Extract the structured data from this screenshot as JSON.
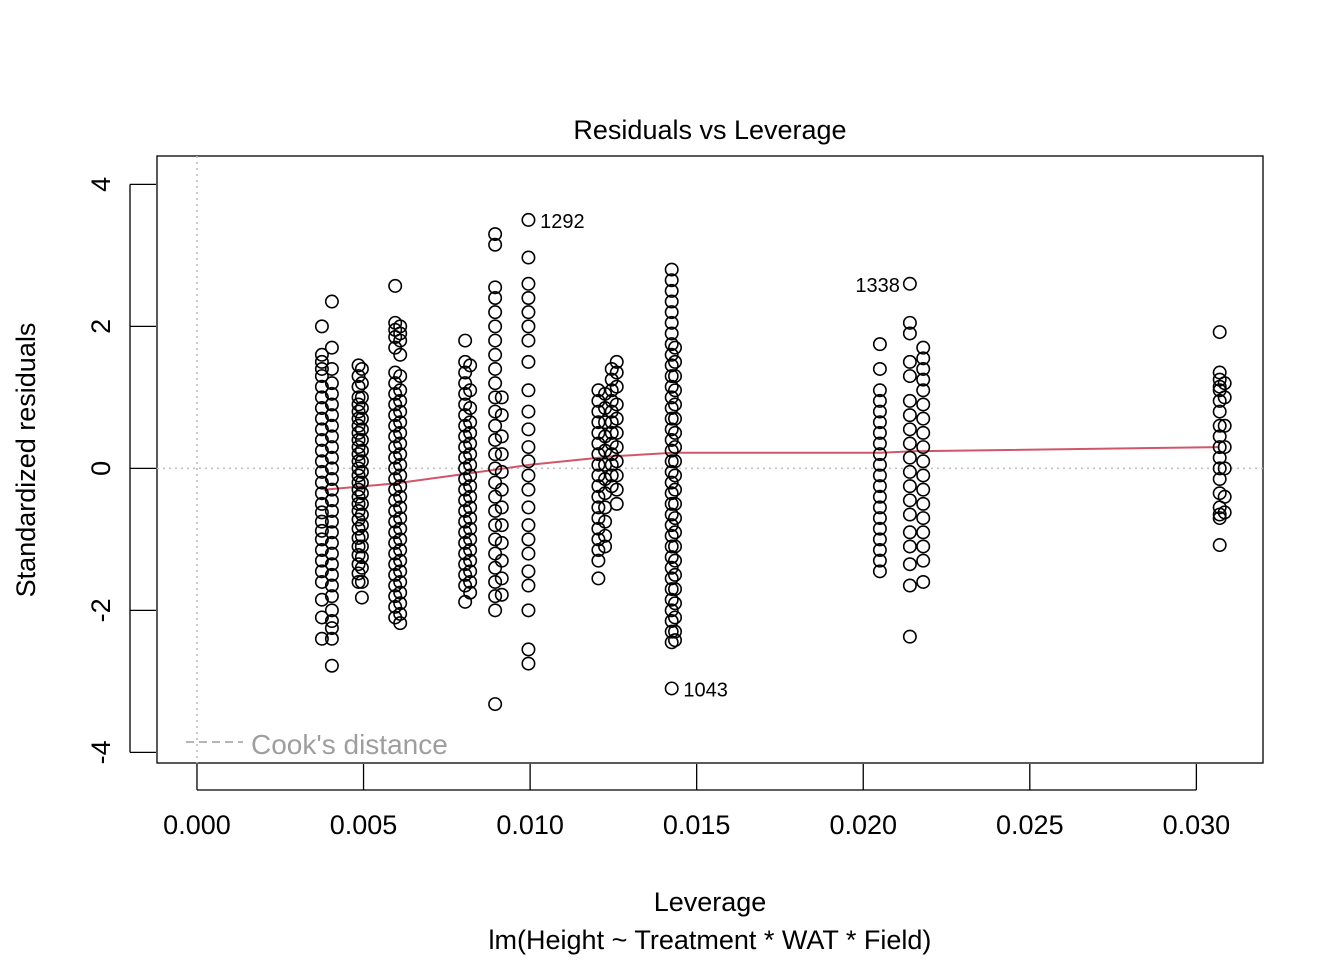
{
  "chart_data": {
    "type": "scatter",
    "title": "Residuals vs Leverage",
    "xlabel": "Leverage",
    "subtitle": "lm(Height ~ Treatment * WAT * Field)",
    "ylabel": "Standardized residuals",
    "xlim": [
      -0.0012,
      0.032
    ],
    "ylim": [
      -4.15,
      4.4
    ],
    "x_ticks": [
      0.0,
      0.005,
      0.01,
      0.015,
      0.02,
      0.025,
      0.03
    ],
    "x_tick_labels": [
      "0.000",
      "0.005",
      "0.010",
      "0.015",
      "0.020",
      "0.025",
      "0.030"
    ],
    "y_ticks": [
      -4,
      -2,
      0,
      2,
      4
    ],
    "y_tick_labels": [
      "-4",
      "-2",
      "0",
      "2",
      "4"
    ],
    "reference_lines": {
      "horizontal": 0,
      "vertical": 0,
      "style": "dotted",
      "color": "#bdbdbd"
    },
    "legend": {
      "position": "bottom-left",
      "label": "Cook's distance",
      "line_style": "dashed",
      "color": "#9e9e9e"
    },
    "smooth_line": {
      "color": "#d1566b",
      "x": [
        0.0038,
        0.006,
        0.008,
        0.01,
        0.0125,
        0.0143,
        0.0205,
        0.0215,
        0.0307
      ],
      "y": [
        -0.3,
        -0.21,
        -0.08,
        0.05,
        0.17,
        0.22,
        0.22,
        0.24,
        0.3
      ]
    },
    "point_color": "#000000",
    "labeled_points": [
      {
        "label": "1292",
        "x": 0.01,
        "y": 3.5,
        "side": "right"
      },
      {
        "label": "1338",
        "x": 0.0214,
        "y": 2.6,
        "side": "left"
      },
      {
        "label": "1043",
        "x": 0.0143,
        "y": -3.1,
        "side": "right"
      }
    ],
    "columns": [
      {
        "x": 0.00375,
        "y": [
          2.0,
          1.6,
          1.5,
          1.4,
          1.3,
          1.15,
          1.0,
          0.85,
          0.7,
          0.55,
          0.4,
          0.25,
          0.1,
          -0.05,
          -0.2,
          -0.35,
          -0.5,
          -0.62,
          -0.75,
          -0.88,
          -1.0,
          -1.15,
          -1.3,
          -1.45,
          -1.6,
          -1.85,
          -2.1,
          -2.4
        ]
      },
      {
        "x": 0.00405,
        "y": [
          2.35,
          1.7,
          1.4,
          1.2,
          1.05,
          0.9,
          0.75,
          0.6,
          0.45,
          0.3,
          0.15,
          0.0,
          -0.15,
          -0.3,
          -0.45,
          -0.6,
          -0.75,
          -0.9,
          -1.05,
          -1.2,
          -1.35,
          -1.5,
          -1.65,
          -1.8,
          -2.0,
          -2.15,
          -2.25,
          -2.4,
          -2.78
        ]
      },
      {
        "x": 0.00485,
        "y": [
          1.45,
          1.3,
          1.15,
          1.0,
          0.9,
          0.8,
          0.7,
          0.6,
          0.5,
          0.4,
          0.3,
          0.2,
          0.1,
          0.0,
          -0.1,
          -0.2,
          -0.3,
          -0.4,
          -0.5,
          -0.6,
          -0.72,
          -0.85,
          -0.98,
          -1.1,
          -1.22,
          -1.35,
          -1.48,
          -1.6
        ]
      },
      {
        "x": 0.00495,
        "y": [
          1.4,
          1.2,
          1.0,
          0.85,
          0.7,
          0.55,
          0.4,
          0.25,
          0.1,
          -0.05,
          -0.2,
          -0.35,
          -0.5,
          -0.65,
          -0.8,
          -0.95,
          -1.1,
          -1.25,
          -1.4,
          -1.6,
          -1.82
        ]
      },
      {
        "x": 0.00595,
        "y": [
          2.57,
          2.05,
          1.95,
          1.85,
          1.7,
          1.35,
          1.2,
          1.05,
          0.9,
          0.75,
          0.6,
          0.45,
          0.3,
          0.15,
          0.0,
          -0.15,
          -0.3,
          -0.45,
          -0.6,
          -0.75,
          -0.9,
          -1.05,
          -1.2,
          -1.35,
          -1.5,
          -1.65,
          -1.8,
          -1.95,
          -2.1
        ]
      },
      {
        "x": 0.0061,
        "y": [
          2.0,
          1.9,
          1.8,
          1.6,
          1.3,
          1.1,
          0.95,
          0.8,
          0.65,
          0.5,
          0.35,
          0.2,
          0.05,
          -0.1,
          -0.25,
          -0.4,
          -0.55,
          -0.7,
          -0.85,
          -1.0,
          -1.15,
          -1.3,
          -1.45,
          -1.6,
          -1.75,
          -1.9,
          -2.05,
          -2.18
        ]
      },
      {
        "x": 0.00805,
        "y": [
          1.8,
          1.5,
          1.35,
          1.2,
          1.05,
          0.9,
          0.75,
          0.6,
          0.45,
          0.3,
          0.15,
          0.0,
          -0.15,
          -0.3,
          -0.45,
          -0.6,
          -0.75,
          -0.9,
          -1.05,
          -1.2,
          -1.35,
          -1.5,
          -1.65,
          -1.88
        ]
      },
      {
        "x": 0.0082,
        "y": [
          1.45,
          1.1,
          0.85,
          0.65,
          0.5,
          0.35,
          0.2,
          0.05,
          -0.1,
          -0.25,
          -0.4,
          -0.55,
          -0.7,
          -0.85,
          -1.0,
          -1.15,
          -1.3,
          -1.45,
          -1.6,
          -1.75
        ]
      },
      {
        "x": 0.00895,
        "y": [
          3.3,
          3.15,
          2.55,
          2.4,
          2.2,
          2.0,
          1.8,
          1.6,
          1.4,
          1.2,
          1.0,
          0.8,
          0.6,
          0.4,
          0.2,
          0.0,
          -0.2,
          -0.4,
          -0.6,
          -0.8,
          -1.0,
          -1.2,
          -1.4,
          -1.6,
          -1.8,
          -2.0,
          -3.32
        ]
      },
      {
        "x": 0.00915,
        "y": [
          1.0,
          0.75,
          0.45,
          0.2,
          -0.05,
          -0.3,
          -0.55,
          -0.8,
          -1.05,
          -1.3,
          -1.55,
          -1.78
        ]
      },
      {
        "x": 0.00995,
        "y": [
          3.5,
          2.97,
          2.6,
          2.4,
          2.2,
          2.0,
          1.8,
          1.5,
          1.1,
          0.8,
          0.55,
          0.3,
          0.1,
          -0.1,
          -0.3,
          -0.55,
          -0.8,
          -1.0,
          -1.2,
          -1.45,
          -1.65,
          -2.0,
          -2.55,
          -2.75
        ]
      },
      {
        "x": 0.01205,
        "y": [
          1.1,
          0.95,
          0.8,
          0.65,
          0.5,
          0.35,
          0.2,
          0.05,
          -0.1,
          -0.25,
          -0.4,
          -0.55,
          -0.7,
          -0.85,
          -1.0,
          -1.15,
          -1.3,
          -1.55
        ]
      },
      {
        "x": 0.01225,
        "y": [
          1.05,
          0.85,
          0.65,
          0.45,
          0.25,
          0.05,
          -0.15,
          -0.35,
          -0.55,
          -0.75,
          -0.95,
          -1.1
        ]
      },
      {
        "x": 0.01245,
        "y": [
          1.4,
          1.25,
          1.1,
          0.95,
          0.8,
          0.65,
          0.5,
          0.35,
          0.2,
          0.05,
          -0.1,
          -0.25
        ]
      },
      {
        "x": 0.0126,
        "y": [
          1.5,
          1.35,
          1.15,
          0.9,
          0.7,
          0.5,
          0.3,
          0.1,
          -0.1,
          -0.3,
          -0.5
        ]
      },
      {
        "x": 0.01425,
        "y": [
          2.8,
          2.65,
          2.5,
          2.35,
          2.2,
          2.05,
          1.9,
          1.75,
          1.6,
          1.45,
          1.3,
          1.15,
          1.0,
          0.85,
          0.7,
          0.55,
          0.4,
          0.25,
          0.1,
          -0.05,
          -0.2,
          -0.35,
          -0.5,
          -0.65,
          -0.8,
          -0.95,
          -1.1,
          -1.25,
          -1.4,
          -1.55,
          -1.7,
          -1.85,
          -2.0,
          -2.15,
          -2.3,
          -2.45,
          -3.1
        ]
      },
      {
        "x": 0.01435,
        "y": [
          1.7,
          1.5,
          1.3,
          1.1,
          0.9,
          0.7,
          0.5,
          0.3,
          0.1,
          -0.1,
          -0.3,
          -0.5,
          -0.7,
          -0.9,
          -1.1,
          -1.3,
          -1.5,
          -1.7,
          -1.9,
          -2.1,
          -2.3,
          -2.42
        ]
      },
      {
        "x": 0.0205,
        "y": [
          1.75,
          1.4,
          1.1,
          0.95,
          0.8,
          0.65,
          0.5,
          0.35,
          0.2,
          0.05,
          -0.1,
          -0.25,
          -0.4,
          -0.55,
          -0.7,
          -0.85,
          -1.0,
          -1.15,
          -1.3,
          -1.45
        ]
      },
      {
        "x": 0.0214,
        "y": [
          2.6,
          2.05,
          1.9,
          1.5,
          1.3,
          0.95,
          0.75,
          0.55,
          0.35,
          0.15,
          -0.05,
          -0.25,
          -0.45,
          -0.65,
          -0.9,
          -1.1,
          -1.35,
          -1.65,
          -2.37
        ]
      },
      {
        "x": 0.0218,
        "y": [
          1.7,
          1.55,
          1.4,
          1.25,
          1.1,
          0.9,
          0.7,
          0.5,
          0.3,
          0.1,
          -0.1,
          -0.3,
          -0.5,
          -0.7,
          -0.9,
          -1.1,
          -1.3,
          -1.6
        ]
      },
      {
        "x": 0.0307,
        "y": [
          1.92,
          1.35,
          1.25,
          1.15,
          1.1,
          0.95,
          0.8,
          0.6,
          0.45,
          0.3,
          0.15,
          0.0,
          -0.15,
          -0.35,
          -0.55,
          -0.65,
          -0.7,
          -1.08
        ]
      },
      {
        "x": 0.03085,
        "y": [
          1.2,
          1.0,
          0.6,
          0.3,
          0.0,
          -0.4,
          -0.62
        ]
      }
    ]
  }
}
